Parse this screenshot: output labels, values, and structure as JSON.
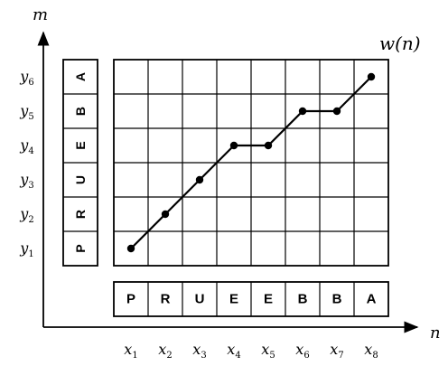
{
  "axes": {
    "y_axis_label": "m",
    "x_axis_label": "n",
    "x_ticks": [
      {
        "base": "x",
        "sub": "1"
      },
      {
        "base": "x",
        "sub": "2"
      },
      {
        "base": "x",
        "sub": "3"
      },
      {
        "base": "x",
        "sub": "4"
      },
      {
        "base": "x",
        "sub": "5"
      },
      {
        "base": "x",
        "sub": "6"
      },
      {
        "base": "x",
        "sub": "7"
      },
      {
        "base": "x",
        "sub": "8"
      }
    ],
    "y_ticks": [
      {
        "base": "y",
        "sub": "1"
      },
      {
        "base": "y",
        "sub": "2"
      },
      {
        "base": "y",
        "sub": "3"
      },
      {
        "base": "y",
        "sub": "4"
      },
      {
        "base": "y",
        "sub": "5"
      },
      {
        "base": "y",
        "sub": "6"
      }
    ]
  },
  "curve_label": "w(n)",
  "sequences": {
    "horizontal": [
      "P",
      "R",
      "U",
      "E",
      "E",
      "B",
      "B",
      "A"
    ],
    "vertical": [
      "P",
      "R",
      "U",
      "E",
      "B",
      "A"
    ]
  },
  "path": [
    {
      "n": 1,
      "m": 1
    },
    {
      "n": 2,
      "m": 2
    },
    {
      "n": 3,
      "m": 3
    },
    {
      "n": 4,
      "m": 4
    },
    {
      "n": 5,
      "m": 4
    },
    {
      "n": 6,
      "m": 5
    },
    {
      "n": 7,
      "m": 5
    },
    {
      "n": 8,
      "m": 6
    }
  ]
}
